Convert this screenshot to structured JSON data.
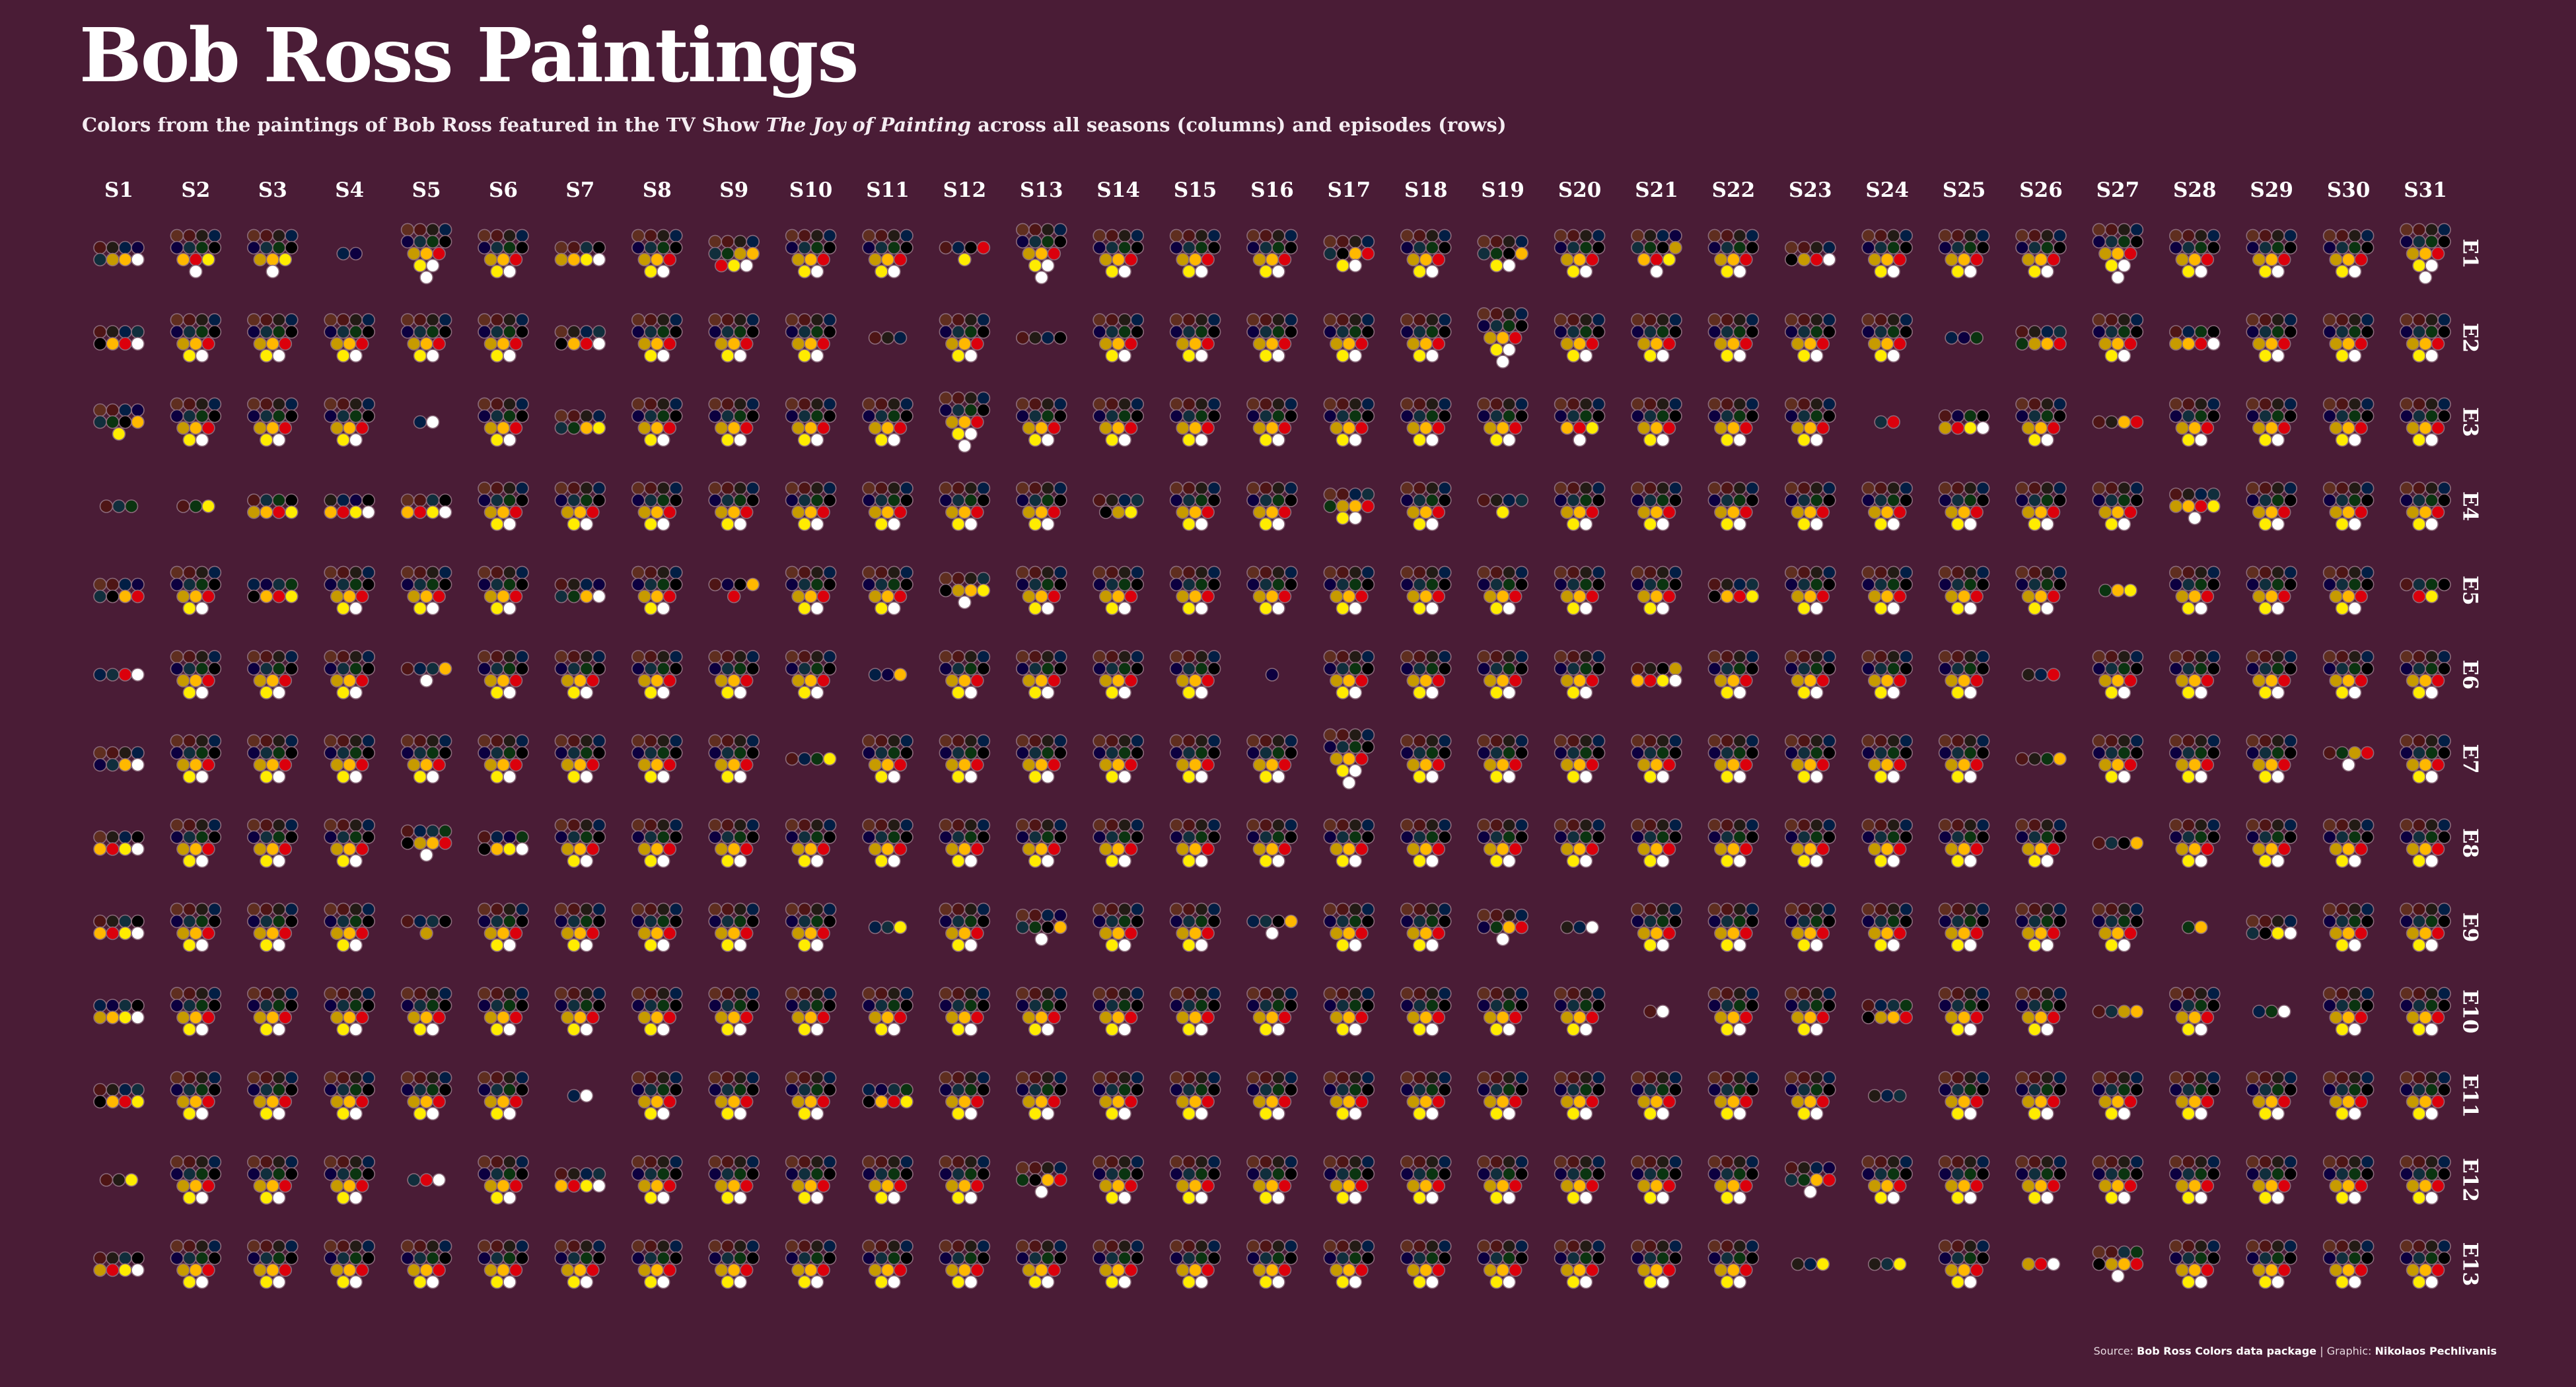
{
  "header": {
    "title": "Bob Ross Paintings",
    "subtitle_pre": "Colors from the paintings of Bob Ross featured in the TV Show ",
    "subtitle_show": "The Joy of Painting",
    "subtitle_post": " across all seasons (columns) and episodes (rows)"
  },
  "footer": {
    "source_label": "Source: ",
    "source_name": "Bob Ross Colors data package",
    "separator": " | Graphic: ",
    "author": "Nikolaos Pechlivanis"
  },
  "palette": {
    "K": "#000000",
    "W": "#ffffff",
    "Y": "#ffec00",
    "O": "#ffb800",
    "D": "#c79b00",
    "R": "#db000c",
    "U": "#5f2e1f",
    "V": "#4e1515",
    "B": "#021e44",
    "P": "#0c0040",
    "G": "#0a3410",
    "T": "#102e3c",
    "S": "#221b15"
  },
  "colors": {
    "background": "#4a1c36",
    "text": "#ffffff",
    "dot_outline": "#8a6a7a"
  },
  "chart_data": {
    "type": "dot-grid",
    "title": "Bob Ross Paintings",
    "columns_label": "seasons",
    "rows_label": "episodes",
    "seasons": [
      "S1",
      "S2",
      "S3",
      "S4",
      "S5",
      "S6",
      "S7",
      "S8",
      "S9",
      "S10",
      "S11",
      "S12",
      "S13",
      "S14",
      "S15",
      "S16",
      "S17",
      "S18",
      "S19",
      "S20",
      "S21",
      "S22",
      "S23",
      "S24",
      "S25",
      "S26",
      "S27",
      "S28",
      "S29",
      "S30",
      "S31"
    ],
    "episodes": [
      "E1",
      "E2",
      "E3",
      "E4",
      "E5",
      "E6",
      "E7",
      "E8",
      "E9",
      "E10",
      "E11",
      "E12",
      "E13"
    ],
    "color_base_order": "UVSBPTGKDORYW",
    "color_counts": [
      [
        8,
        12,
        12,
        2,
        14,
        13,
        8,
        13,
        11,
        13,
        13,
        5,
        14,
        13,
        13,
        13,
        10,
        13,
        10,
        13,
        12,
        13,
        8,
        13,
        13,
        13,
        14,
        13,
        13,
        13,
        14
      ],
      [
        8,
        13,
        13,
        13,
        13,
        13,
        8,
        13,
        13,
        13,
        3,
        13,
        4,
        13,
        13,
        13,
        13,
        13,
        14,
        13,
        13,
        13,
        13,
        13,
        3,
        8,
        13,
        8,
        13,
        13,
        13
      ],
      [
        9,
        13,
        13,
        13,
        2,
        13,
        8,
        13,
        13,
        13,
        13,
        14,
        13,
        13,
        13,
        13,
        13,
        13,
        13,
        12,
        13,
        13,
        13,
        2,
        8,
        13,
        4,
        13,
        13,
        13,
        13
      ],
      [
        3,
        3,
        8,
        8,
        8,
        13,
        13,
        13,
        13,
        13,
        13,
        13,
        13,
        7,
        13,
        13,
        10,
        13,
        5,
        13,
        13,
        13,
        13,
        13,
        13,
        13,
        13,
        9,
        13,
        13,
        13
      ],
      [
        8,
        13,
        8,
        13,
        13,
        13,
        8,
        13,
        5,
        13,
        13,
        9,
        13,
        13,
        13,
        13,
        13,
        13,
        13,
        13,
        13,
        8,
        13,
        13,
        13,
        13,
        3,
        13,
        13,
        13,
        6
      ],
      [
        4,
        13,
        13,
        13,
        5,
        13,
        13,
        13,
        13,
        13,
        3,
        13,
        13,
        13,
        13,
        1,
        13,
        13,
        13,
        13,
        8,
        13,
        13,
        13,
        13,
        3,
        13,
        13,
        13,
        13,
        13
      ],
      [
        8,
        13,
        13,
        13,
        13,
        13,
        13,
        13,
        13,
        4,
        13,
        13,
        13,
        13,
        13,
        13,
        14,
        13,
        13,
        13,
        13,
        13,
        13,
        13,
        13,
        4,
        13,
        13,
        13,
        5,
        13
      ],
      [
        8,
        13,
        13,
        13,
        9,
        8,
        13,
        13,
        13,
        13,
        13,
        13,
        13,
        13,
        13,
        13,
        13,
        13,
        13,
        13,
        13,
        13,
        13,
        13,
        13,
        13,
        4,
        13,
        13,
        13,
        13
      ],
      [
        8,
        13,
        13,
        13,
        5,
        13,
        13,
        13,
        13,
        13,
        3,
        13,
        9,
        13,
        13,
        5,
        13,
        13,
        9,
        3,
        13,
        13,
        13,
        13,
        13,
        13,
        13,
        2,
        8,
        13,
        13
      ],
      [
        8,
        13,
        13,
        13,
        13,
        13,
        13,
        13,
        13,
        13,
        13,
        13,
        13,
        13,
        13,
        13,
        13,
        13,
        13,
        13,
        2,
        13,
        13,
        8,
        13,
        13,
        4,
        13,
        3,
        13,
        13
      ],
      [
        8,
        13,
        13,
        13,
        13,
        13,
        2,
        13,
        13,
        13,
        8,
        13,
        13,
        13,
        13,
        13,
        13,
        13,
        13,
        13,
        13,
        13,
        13,
        3,
        13,
        13,
        13,
        13,
        13,
        13,
        13
      ],
      [
        3,
        13,
        13,
        13,
        3,
        13,
        8,
        13,
        13,
        13,
        13,
        13,
        9,
        13,
        13,
        13,
        13,
        13,
        13,
        13,
        13,
        13,
        9,
        13,
        13,
        13,
        13,
        13,
        13,
        13,
        13
      ],
      [
        8,
        13,
        13,
        13,
        13,
        13,
        13,
        13,
        13,
        13,
        13,
        13,
        13,
        13,
        13,
        13,
        13,
        13,
        13,
        13,
        13,
        13,
        3,
        3,
        13,
        3,
        9,
        13,
        13,
        13,
        13
      ]
    ]
  }
}
